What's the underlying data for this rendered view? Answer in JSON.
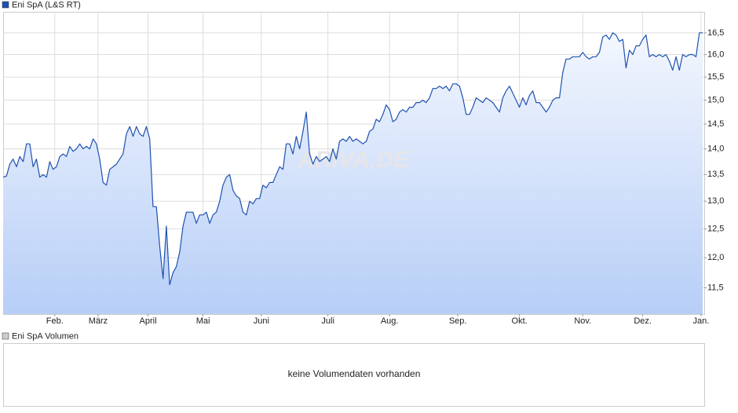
{
  "chart_data": {
    "type": "area",
    "title": "Eni SpA (L&S RT)",
    "watermark": "ARIVA.DE",
    "color": "#1f52b0",
    "log_scale": true,
    "grid": true,
    "xlim": [
      0,
      210
    ],
    "ylim": [
      11.08,
      17.0
    ],
    "xticks": [
      {
        "value": 15.5,
        "label": "Feb."
      },
      {
        "value": 28.5,
        "label": "März"
      },
      {
        "value": 43.5,
        "label": "April"
      },
      {
        "value": 60,
        "label": "Mai"
      },
      {
        "value": 77.5,
        "label": "Juni"
      },
      {
        "value": 97.5,
        "label": "Juli"
      },
      {
        "value": 116,
        "label": "Aug."
      },
      {
        "value": 136.5,
        "label": "Sep."
      },
      {
        "value": 155,
        "label": "Okt."
      },
      {
        "value": 174,
        "label": "Nov."
      },
      {
        "value": 192,
        "label": "Dez."
      },
      {
        "value": 209.5,
        "label": "Jan."
      }
    ],
    "yticks": [
      {
        "value": 11.5,
        "label": "11,5"
      },
      {
        "value": 12.0,
        "label": "12,0"
      },
      {
        "value": 12.5,
        "label": "12,5"
      },
      {
        "value": 13.0,
        "label": "13,0"
      },
      {
        "value": 13.5,
        "label": "13,5"
      },
      {
        "value": 14.0,
        "label": "14,0"
      },
      {
        "value": 14.5,
        "label": "14,5"
      },
      {
        "value": 15.0,
        "label": "15,0"
      },
      {
        "value": 15.5,
        "label": "15,5"
      },
      {
        "value": 16.0,
        "label": "16,0"
      },
      {
        "value": 16.5,
        "label": "16,5"
      }
    ],
    "values": [
      13.45,
      13.47,
      13.7,
      13.8,
      13.65,
      13.85,
      13.75,
      14.1,
      14.1,
      13.65,
      13.8,
      13.45,
      13.5,
      13.45,
      13.75,
      13.6,
      13.65,
      13.85,
      13.9,
      13.85,
      14.05,
      13.95,
      14.0,
      14.1,
      14.0,
      14.05,
      14.0,
      14.2,
      14.1,
      13.8,
      13.35,
      13.3,
      13.6,
      13.65,
      13.7,
      13.8,
      13.9,
      14.3,
      14.45,
      14.25,
      14.45,
      14.3,
      14.25,
      14.45,
      14.2,
      12.9,
      12.9,
      12.2,
      11.65,
      12.55,
      11.55,
      11.75,
      11.85,
      12.1,
      12.55,
      12.8,
      12.8,
      12.8,
      12.6,
      12.75,
      12.75,
      12.8,
      12.6,
      12.75,
      12.8,
      13.0,
      13.3,
      13.45,
      13.5,
      13.2,
      13.1,
      13.05,
      12.8,
      12.75,
      13.0,
      12.95,
      13.05,
      13.05,
      13.3,
      13.25,
      13.35,
      13.35,
      13.5,
      13.65,
      13.6,
      14.1,
      14.1,
      13.9,
      14.25,
      14.0,
      14.35,
      14.75,
      13.9,
      13.7,
      13.85,
      13.75,
      13.8,
      13.85,
      13.75,
      14.0,
      13.8,
      14.15,
      14.2,
      14.15,
      14.25,
      14.15,
      14.2,
      14.15,
      14.1,
      14.15,
      14.35,
      14.4,
      14.6,
      14.55,
      14.7,
      14.9,
      14.8,
      14.55,
      14.6,
      14.75,
      14.8,
      14.75,
      14.85,
      14.85,
      14.95,
      14.95,
      15.0,
      14.95,
      15.05,
      15.25,
      15.25,
      15.3,
      15.25,
      15.3,
      15.2,
      15.35,
      15.35,
      15.3,
      15.05,
      14.7,
      14.7,
      14.85,
      15.05,
      15.0,
      14.95,
      15.05,
      15.0,
      14.95,
      14.85,
      14.75,
      15.05,
      15.2,
      15.3,
      15.15,
      15.0,
      14.85,
      15.05,
      14.9,
      15.1,
      15.2,
      14.95,
      14.95,
      14.85,
      14.75,
      14.85,
      15.0,
      15.05,
      15.05,
      15.6,
      15.9,
      15.9,
      15.95,
      15.95,
      15.95,
      16.05,
      15.95,
      15.9,
      15.95,
      15.95,
      16.05,
      16.4,
      16.45,
      16.35,
      16.5,
      16.45,
      16.3,
      16.35,
      15.7,
      16.1,
      16.0,
      16.2,
      16.2,
      16.35,
      16.45,
      15.95,
      16.0,
      15.95,
      16.0,
      15.95,
      16.0,
      15.85,
      15.65,
      15.95,
      15.65,
      16.0,
      15.95,
      16.0,
      16.0,
      15.95,
      16.5,
      16.5
    ]
  },
  "volume_panel": {
    "title": "Eni SpA Volumen",
    "message": "keine Volumendaten vorhanden"
  }
}
